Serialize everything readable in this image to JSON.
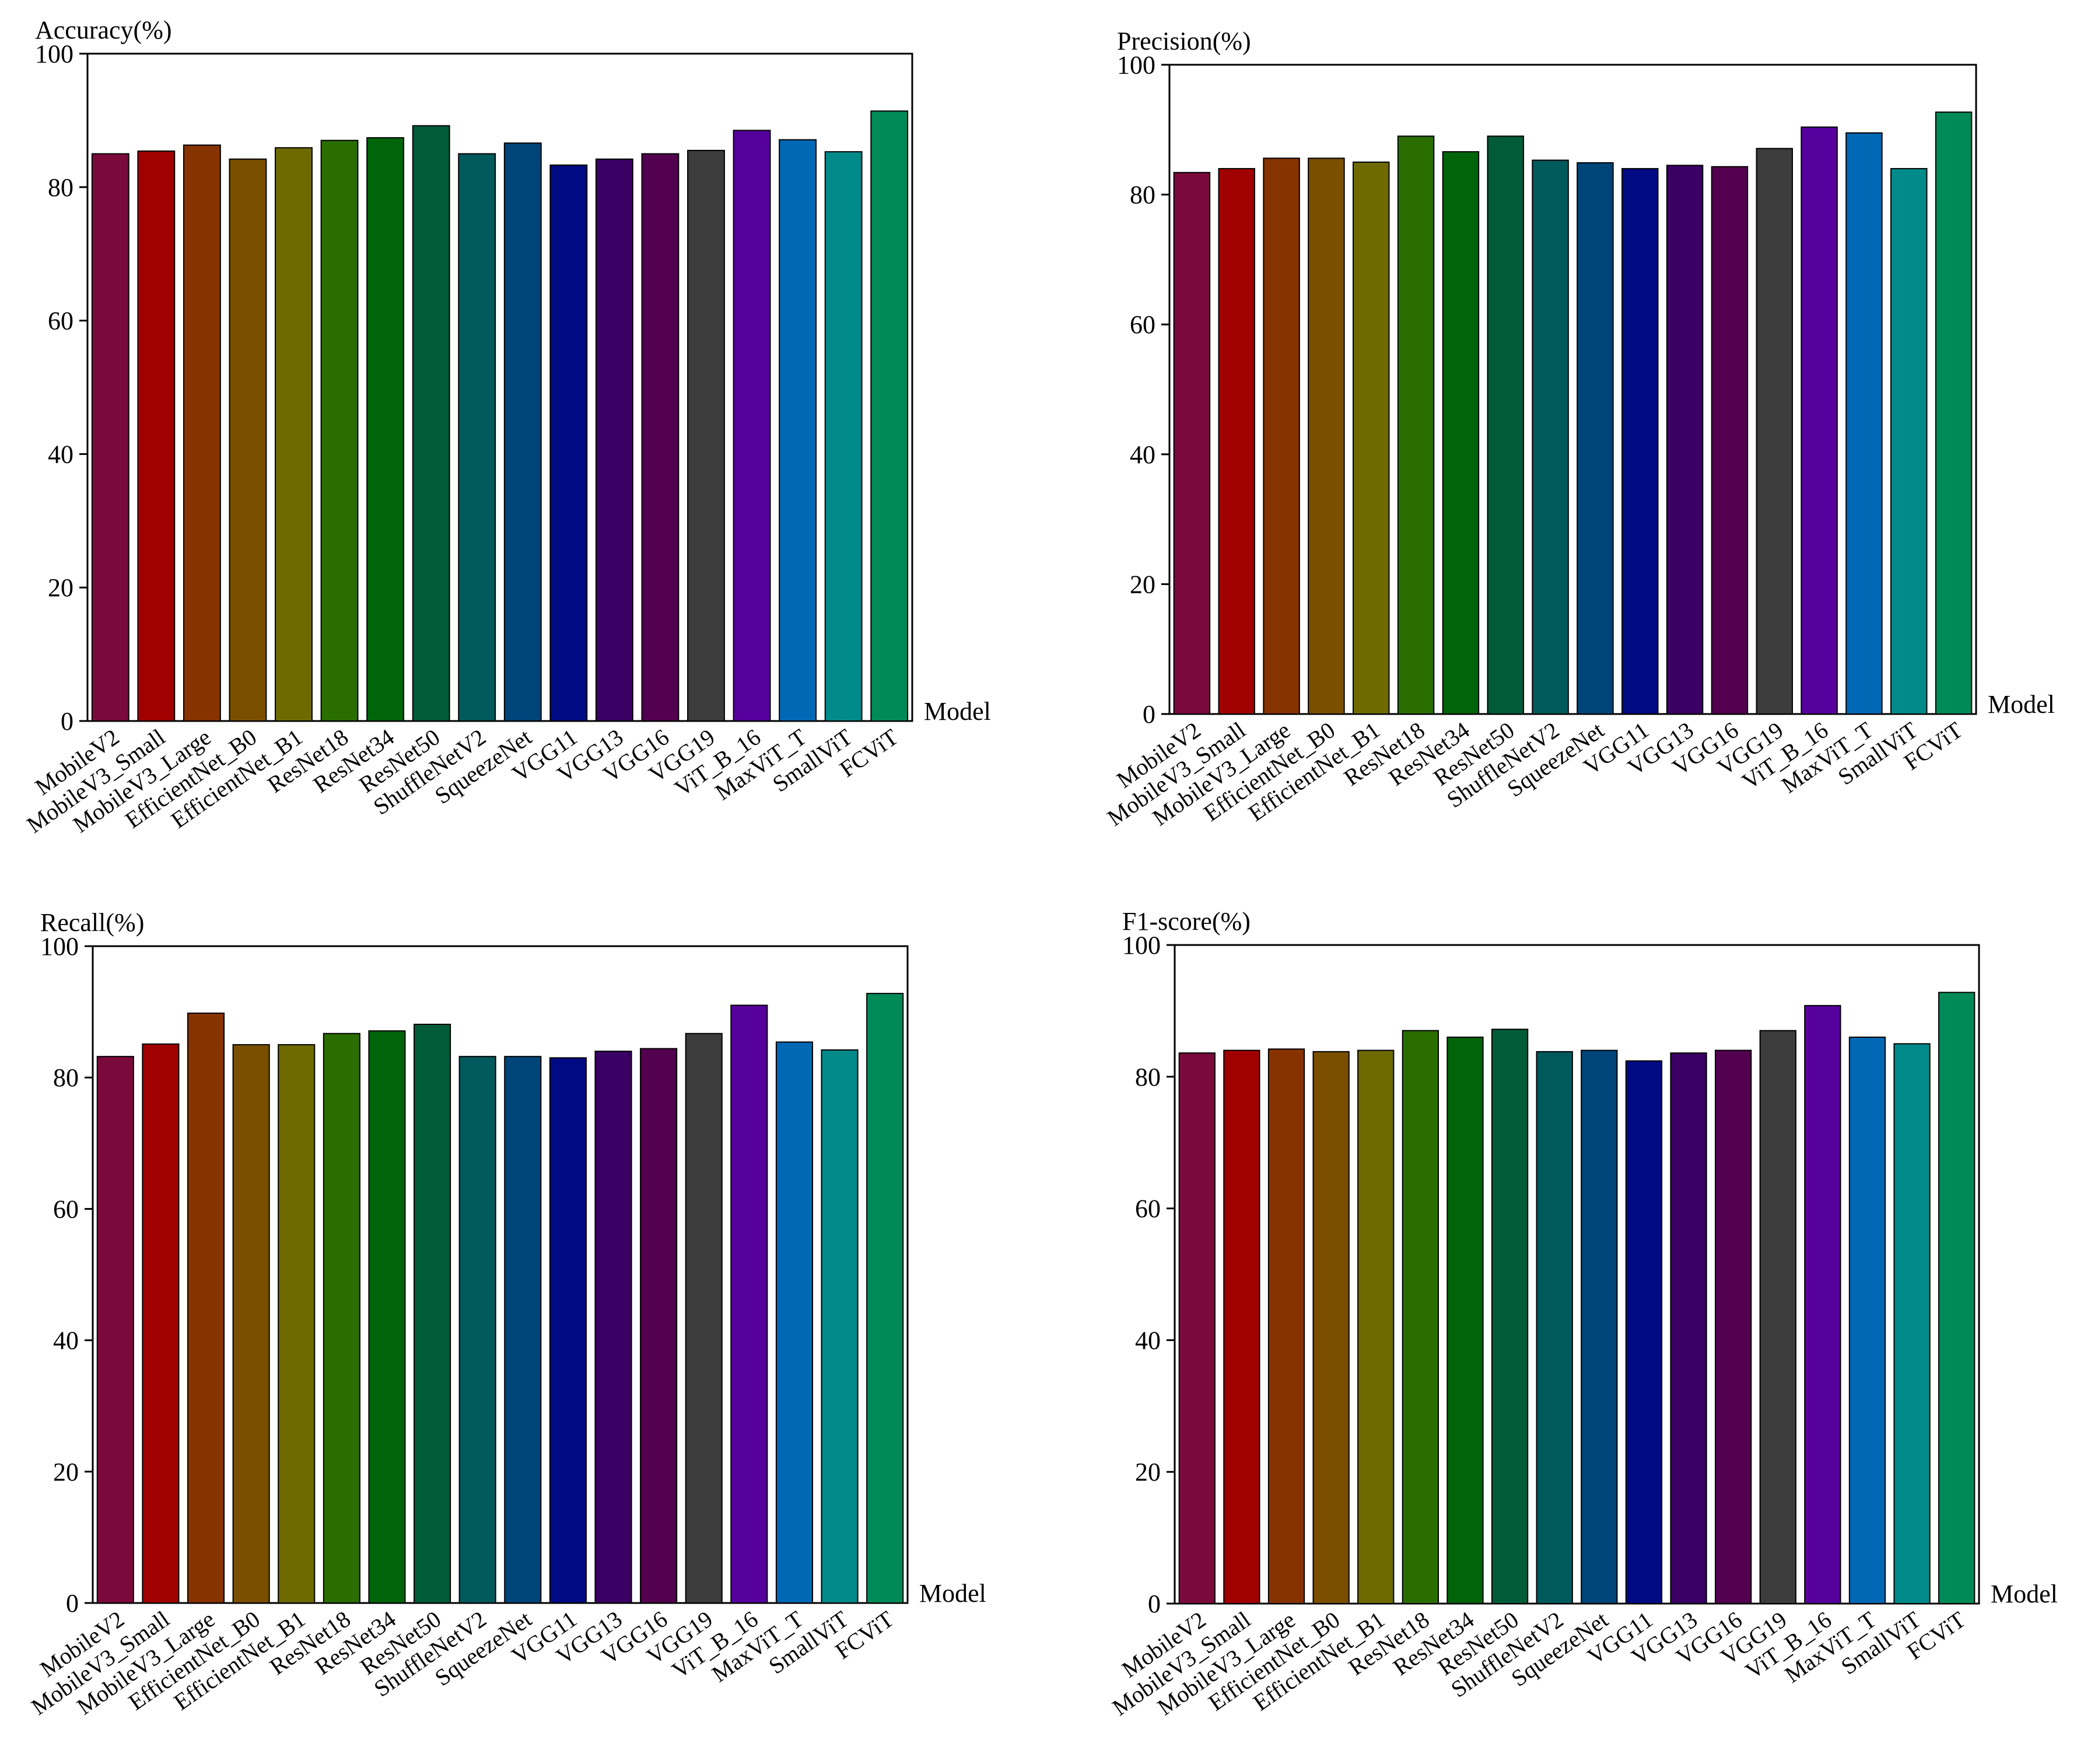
{
  "figure": {
    "models": [
      "MobileV2",
      "MobileV3_Small",
      "MobileV3_Large",
      "EfficientNet_B0",
      "EfficientNet_B1",
      "ResNet18",
      "ResNet34",
      "ResNet50",
      "ShuffleNetV2",
      "SqueezeNet",
      "VGG11",
      "VGG13",
      "VGG16",
      "VGG19",
      "ViT_B_16",
      "MaxViT_T",
      "SmallViT",
      "FCViT"
    ],
    "colors": [
      "#7a0a3c",
      "#a10000",
      "#873300",
      "#7a5000",
      "#6e6a00",
      "#2a6e00",
      "#00640a",
      "#005c38",
      "#005a5c",
      "#00457a",
      "#000a82",
      "#3a0064",
      "#52004f",
      "#3c3c3c",
      "#56009e",
      "#0068b4",
      "#008a8a",
      "#008a58"
    ]
  },
  "chart_data": [
    {
      "type": "bar",
      "title": "Accuracy(%)",
      "xlabel": "Model",
      "ylabel": "Accuracy(%)",
      "ylim": [
        0,
        100
      ],
      "yticks": [
        0,
        20,
        40,
        60,
        80,
        100
      ],
      "grid": false,
      "categories": [
        "MobileV2",
        "MobileV3_Small",
        "MobileV3_Large",
        "EfficientNet_B0",
        "EfficientNet_B1",
        "ResNet18",
        "ResNet34",
        "ResNet50",
        "ShuffleNetV2",
        "SqueezeNet",
        "VGG11",
        "VGG13",
        "VGG16",
        "VGG19",
        "ViT_B_16",
        "MaxViT_T",
        "SmallViT",
        "FCViT"
      ],
      "values": [
        85.0,
        85.4,
        86.3,
        84.2,
        85.9,
        87.0,
        87.4,
        89.2,
        85.0,
        86.6,
        83.3,
        84.2,
        85.0,
        85.5,
        88.5,
        87.1,
        85.3,
        91.4
      ]
    },
    {
      "type": "bar",
      "title": "Precision(%)",
      "xlabel": "Model",
      "ylabel": "Precision(%)",
      "ylim": [
        0,
        100
      ],
      "yticks": [
        0,
        20,
        40,
        60,
        80,
        100
      ],
      "grid": false,
      "categories": [
        "MobileV2",
        "MobileV3_Small",
        "MobileV3_Large",
        "EfficientNet_B0",
        "EfficientNet_B1",
        "ResNet18",
        "ResNet34",
        "ResNet50",
        "ShuffleNetV2",
        "SqueezeNet",
        "VGG11",
        "VGG13",
        "VGG16",
        "VGG19",
        "ViT_B_16",
        "MaxViT_T",
        "SmallViT",
        "FCViT"
      ],
      "values": [
        83.4,
        84.0,
        85.6,
        85.6,
        85.0,
        89.0,
        86.6,
        89.0,
        85.3,
        84.9,
        84.0,
        84.5,
        84.3,
        87.1,
        90.4,
        89.5,
        84.0,
        92.7
      ]
    },
    {
      "type": "bar",
      "title": "Recall(%)",
      "xlabel": "Model",
      "ylabel": "Recall(%)",
      "ylim": [
        0,
        100
      ],
      "yticks": [
        0,
        20,
        40,
        60,
        80,
        100
      ],
      "grid": false,
      "categories": [
        "MobileV2",
        "MobileV3_Small",
        "MobileV3_Large",
        "EfficientNet_B0",
        "EfficientNet_B1",
        "ResNet18",
        "ResNet34",
        "ResNet50",
        "ShuffleNetV2",
        "SqueezeNet",
        "VGG11",
        "VGG13",
        "VGG16",
        "VGG19",
        "ViT_B_16",
        "MaxViT_T",
        "SmallViT",
        "FCViT"
      ],
      "values": [
        83.2,
        85.1,
        89.8,
        85.0,
        85.0,
        86.7,
        87.1,
        88.1,
        83.2,
        83.2,
        83.0,
        84.0,
        84.4,
        86.7,
        91.0,
        85.4,
        84.2,
        92.8
      ]
    },
    {
      "type": "bar",
      "title": "F1-score(%)",
      "xlabel": "Model",
      "ylabel": "F1-score(%)",
      "ylim": [
        0,
        100
      ],
      "yticks": [
        0,
        20,
        40,
        60,
        80,
        100
      ],
      "grid": false,
      "categories": [
        "MobileV2",
        "MobileV3_Small",
        "MobileV3_Large",
        "EfficientNet_B0",
        "EfficientNet_B1",
        "ResNet18",
        "ResNet34",
        "ResNet50",
        "ShuffleNetV2",
        "SqueezeNet",
        "VGG11",
        "VGG13",
        "VGG16",
        "VGG19",
        "ViT_B_16",
        "MaxViT_T",
        "SmallViT",
        "FCViT"
      ],
      "values": [
        83.6,
        84.0,
        84.2,
        83.8,
        84.0,
        87.0,
        86.0,
        87.2,
        83.8,
        84.0,
        82.4,
        83.6,
        84.0,
        87.0,
        90.8,
        86.0,
        85.0,
        92.8
      ]
    }
  ]
}
